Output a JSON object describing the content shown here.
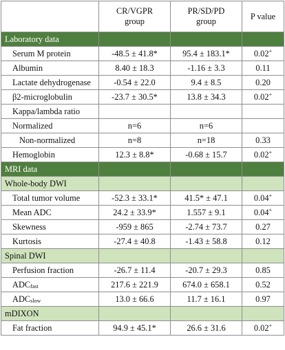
{
  "header": {
    "col1_line1": "CR/VGPR",
    "col1_line2": "group",
    "col2_line1": "PR/SD/PD",
    "col2_line2": "group",
    "col3": "P value"
  },
  "sections": {
    "laboratory": "Laboratory data",
    "mri": "MRI data",
    "whole_body_dwi": "Whole-body DWI",
    "spinal_dwi": "Spinal DWI",
    "mdixon": "mDIXON"
  },
  "rows": {
    "serum_m_protein": {
      "label": "Serum M protein",
      "cr": "-48.5 ± 41.8*",
      "pr": "95.4 ± 183.1*",
      "p": "0.02",
      "p_sup": "+"
    },
    "albumin": {
      "label": "Albumin",
      "cr": "8.40 ± 18.3",
      "pr": "-1.16 ± 3.3",
      "p": "0.11"
    },
    "ldh": {
      "label": "Lactate dehydrogenase",
      "cr": "-0.54 ± 22.0",
      "pr": "9.4 ± 8.5",
      "p": "0.20"
    },
    "b2m": {
      "label": "β2-microglobulin",
      "cr": "-23.7 ± 30.5*",
      "pr": "13.8 ± 34.3",
      "p": "0.02",
      "p_sup": "+"
    },
    "kappa_lambda": {
      "label": "Kappa/lambda ratio"
    },
    "normalized": {
      "label": "Normalized",
      "cr": "n=6",
      "pr": "n=6",
      "p": ""
    },
    "non_normalized": {
      "label": "Non-normalized",
      "cr": "n=8",
      "pr": "n=18",
      "p": "0.33"
    },
    "hemoglobin": {
      "label": "Hemoglobin",
      "cr": "12.3 ± 8.8*",
      "pr": "-0.68 ± 15.7",
      "p": "0.02",
      "p_sup": "+"
    },
    "ttv": {
      "label": "Total tumor volume",
      "cr": "-52.3 ± 33.1*",
      "pr": "41.5* ± 47.1",
      "p": "0.04",
      "p_sup": "+"
    },
    "mean_adc": {
      "label": "Mean ADC",
      "cr": "24.2 ± 33.9*",
      "pr": "1.557 ± 9.1",
      "p": "0.04",
      "p_sup": "+"
    },
    "skewness": {
      "label": "Skewness",
      "cr": "-959 ± 865",
      "pr": "-2.74 ± 73.7",
      "p": "0.27"
    },
    "kurtosis": {
      "label": "Kurtosis",
      "cr": "-27.4 ± 40.8",
      "pr": "-1.43 ± 58.8",
      "p": "0.12"
    },
    "perfusion": {
      "label": "Perfusion fraction",
      "cr": "-26.7 ± 11.4",
      "pr": "-20.7 ± 29.3",
      "p": "0.85"
    },
    "adc_fast": {
      "label": "ADC",
      "label_sub": "fast",
      "cr": "217.6 ± 221.9",
      "pr": "674.0 ± 658.1",
      "p": "0.52"
    },
    "adc_slow": {
      "label": "ADC",
      "label_sub": "slow",
      "cr": "13.0 ± 66.6",
      "pr": "11.7 ± 16.1",
      "p": "0.97"
    },
    "fat_fraction": {
      "label": "Fat fraction",
      "cr": "94.9 ± 45.1*",
      "pr": "26.6 ± 31.6",
      "p": "0.02",
      "p_sup": "+"
    }
  },
  "colors": {
    "section_dark": "#4f7f3e",
    "section_light": "#cfe3bd",
    "border": "#8e8e8e"
  }
}
